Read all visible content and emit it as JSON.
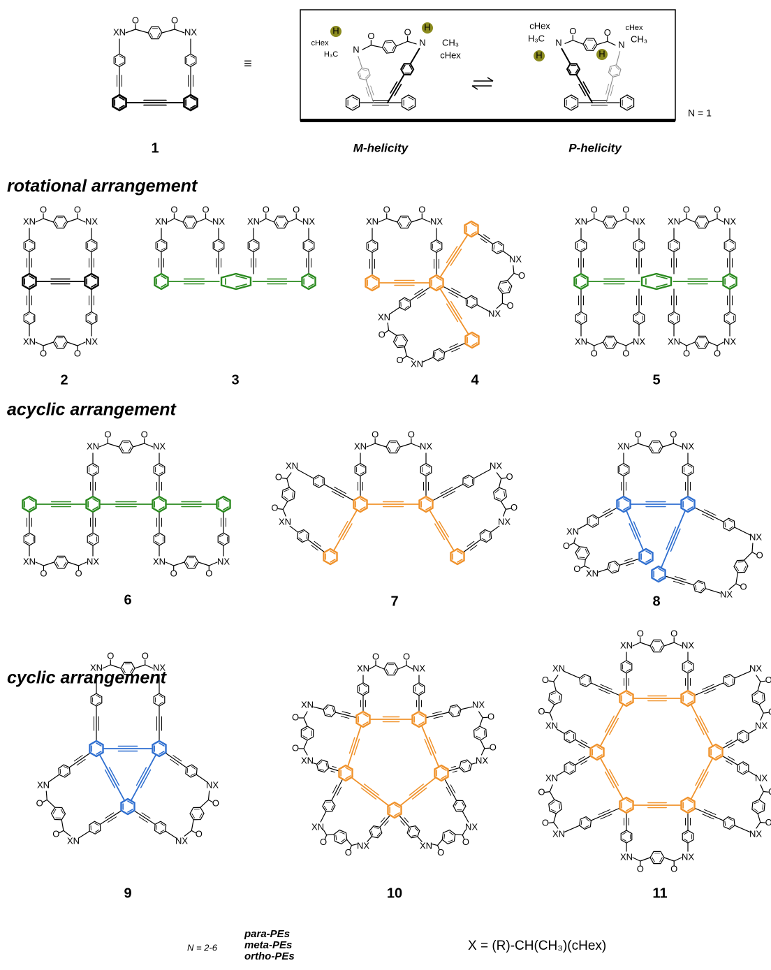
{
  "header": {
    "compound": "1",
    "equivalent": "≡",
    "m_label": "M-helicity",
    "p_label": "P-helicity",
    "n_value": "N = 1"
  },
  "sections": [
    "rotational arrangement",
    "acyclic arrangement",
    "cyclic arrangement"
  ],
  "compounds": [
    "2",
    "3",
    "4",
    "5",
    "6",
    "7",
    "8",
    "9",
    "10",
    "11"
  ],
  "atoms": {
    "xn": "XN",
    "nx": "NX",
    "o": "O",
    "n": "N",
    "h": "H",
    "chex": "cHex",
    "h3c": "H₃C",
    "ch3": "CH₃"
  },
  "legend": {
    "n_range": "N = 2-6",
    "items": [
      {
        "text": "para-PEs",
        "color": "#2a8a1f"
      },
      {
        "text": "meta-PEs",
        "color": "#f0922b"
      },
      {
        "text": "ortho-PEs",
        "color": "#2f6fd0"
      }
    ]
  },
  "definition": "X = (R)-CH(CH₃)(cHex)"
}
